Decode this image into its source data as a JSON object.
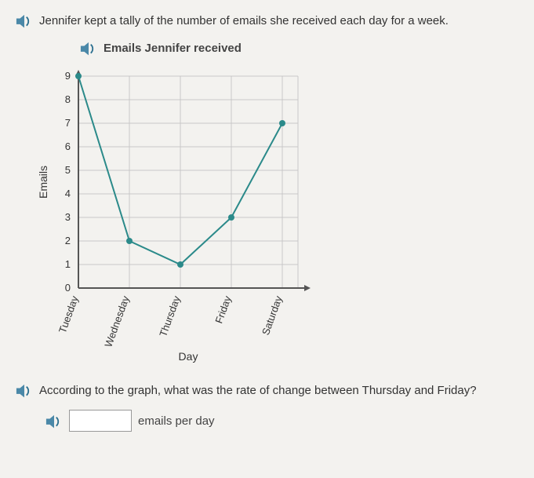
{
  "question1": {
    "text": "Jennifer kept a tally of the number of emails she received each day for a week."
  },
  "chart": {
    "title": "Emails Jennifer received",
    "type": "line",
    "xlabel": "Day",
    "ylabel": "Emails",
    "categories": [
      "Tuesday",
      "Wednesday",
      "Thursday",
      "Friday",
      "Saturday"
    ],
    "values": [
      9,
      2,
      1,
      3,
      7
    ],
    "line_color": "#2b8a8a",
    "marker_color": "#2b8a8a",
    "marker_radius": 4,
    "line_width": 2,
    "ylim": [
      0,
      9
    ],
    "ytick_step": 1,
    "grid_color": "#c8c8c8",
    "axis_color": "#555555",
    "background_color": "#f3f2ef",
    "label_fontsize": 14,
    "tick_fontsize": 13,
    "xlabel_rotation_deg": -70
  },
  "question2": {
    "text": "According to the graph, what was the rate of change between Thursday and Friday?"
  },
  "answer": {
    "value": "",
    "unit_label": "emails per day"
  },
  "icons": {
    "speaker_body_color": "#4a88a8",
    "speaker_wave_color": "#2b6f8f"
  }
}
